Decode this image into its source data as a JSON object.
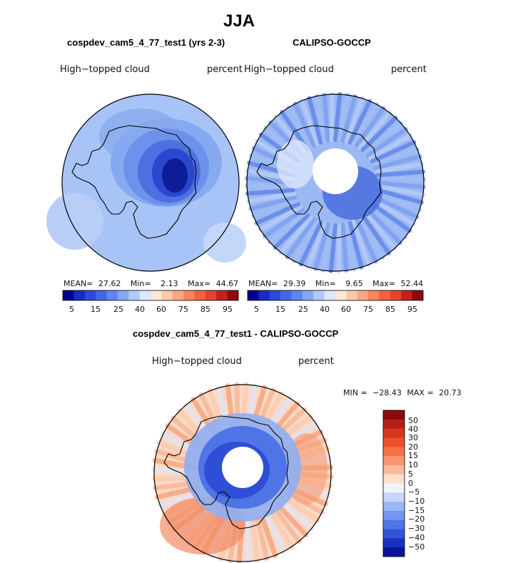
{
  "chart_data": {
    "type": "heatmap",
    "title": "JJA",
    "panels": [
      {
        "id": "model",
        "subtitle": "cospdev_cam5_4_77_test1 (yrs 2-3)",
        "variable": "High−topped cloud",
        "units": "percent",
        "projection": "south-polar-stereographic",
        "mean_label": "MEAN=",
        "mean": "27.62",
        "min_label": "Min=",
        "min": "2.13",
        "max_label": "Max=",
        "max": "44.67",
        "colorbar_ticks": [
          "5",
          "15",
          "25",
          "40",
          "60",
          "75",
          "85",
          "95"
        ]
      },
      {
        "id": "obs",
        "subtitle": "CALIPSO-GOCCP",
        "variable": "High−topped cloud",
        "units": "percent",
        "projection": "south-polar-stereographic",
        "mean_label": "MEAN=",
        "mean": "29.39",
        "min_label": "Min=",
        "min": "9.65",
        "max_label": "Max=",
        "max": "52.44",
        "colorbar_ticks": [
          "5",
          "15",
          "25",
          "40",
          "60",
          "75",
          "85",
          "95"
        ]
      },
      {
        "id": "diff",
        "subtitle": "cospdev_cam5_4_77_test1 - CALIPSO-GOCCP",
        "variable": "High−topped cloud",
        "units": "percent",
        "projection": "south-polar-stereographic",
        "min_label": "MIN =",
        "min": "−28.43",
        "max_label": "MAX =",
        "max": "20.73",
        "colorbar_ticks": [
          "50",
          "40",
          "30",
          "20",
          "15",
          "10",
          "5",
          "0",
          "−5",
          "−10",
          "−15",
          "−20",
          "−30",
          "−40",
          "−50"
        ]
      }
    ],
    "colormaps": {
      "seq": [
        "#00008c",
        "#1a2bbf",
        "#2f49d6",
        "#4168e4",
        "#5f86ee",
        "#84a8f6",
        "#b0c8fa",
        "#dbe7fc",
        "#fde7d6",
        "#fbc9ad",
        "#f8a883",
        "#f4855d",
        "#ef6340",
        "#e2432b",
        "#c0231b",
        "#8b0b0b"
      ],
      "div": [
        "#8b0b0b",
        "#b31f16",
        "#d6361f",
        "#ec4f2a",
        "#f47245",
        "#f79670",
        "#f9bb9b",
        "#fce0cc",
        "#eef3fd",
        "#c5d6fa",
        "#9bb7f5",
        "#7396ef",
        "#4f75e6",
        "#3254d7",
        "#1a30c0",
        "#0a1498"
      ]
    }
  }
}
